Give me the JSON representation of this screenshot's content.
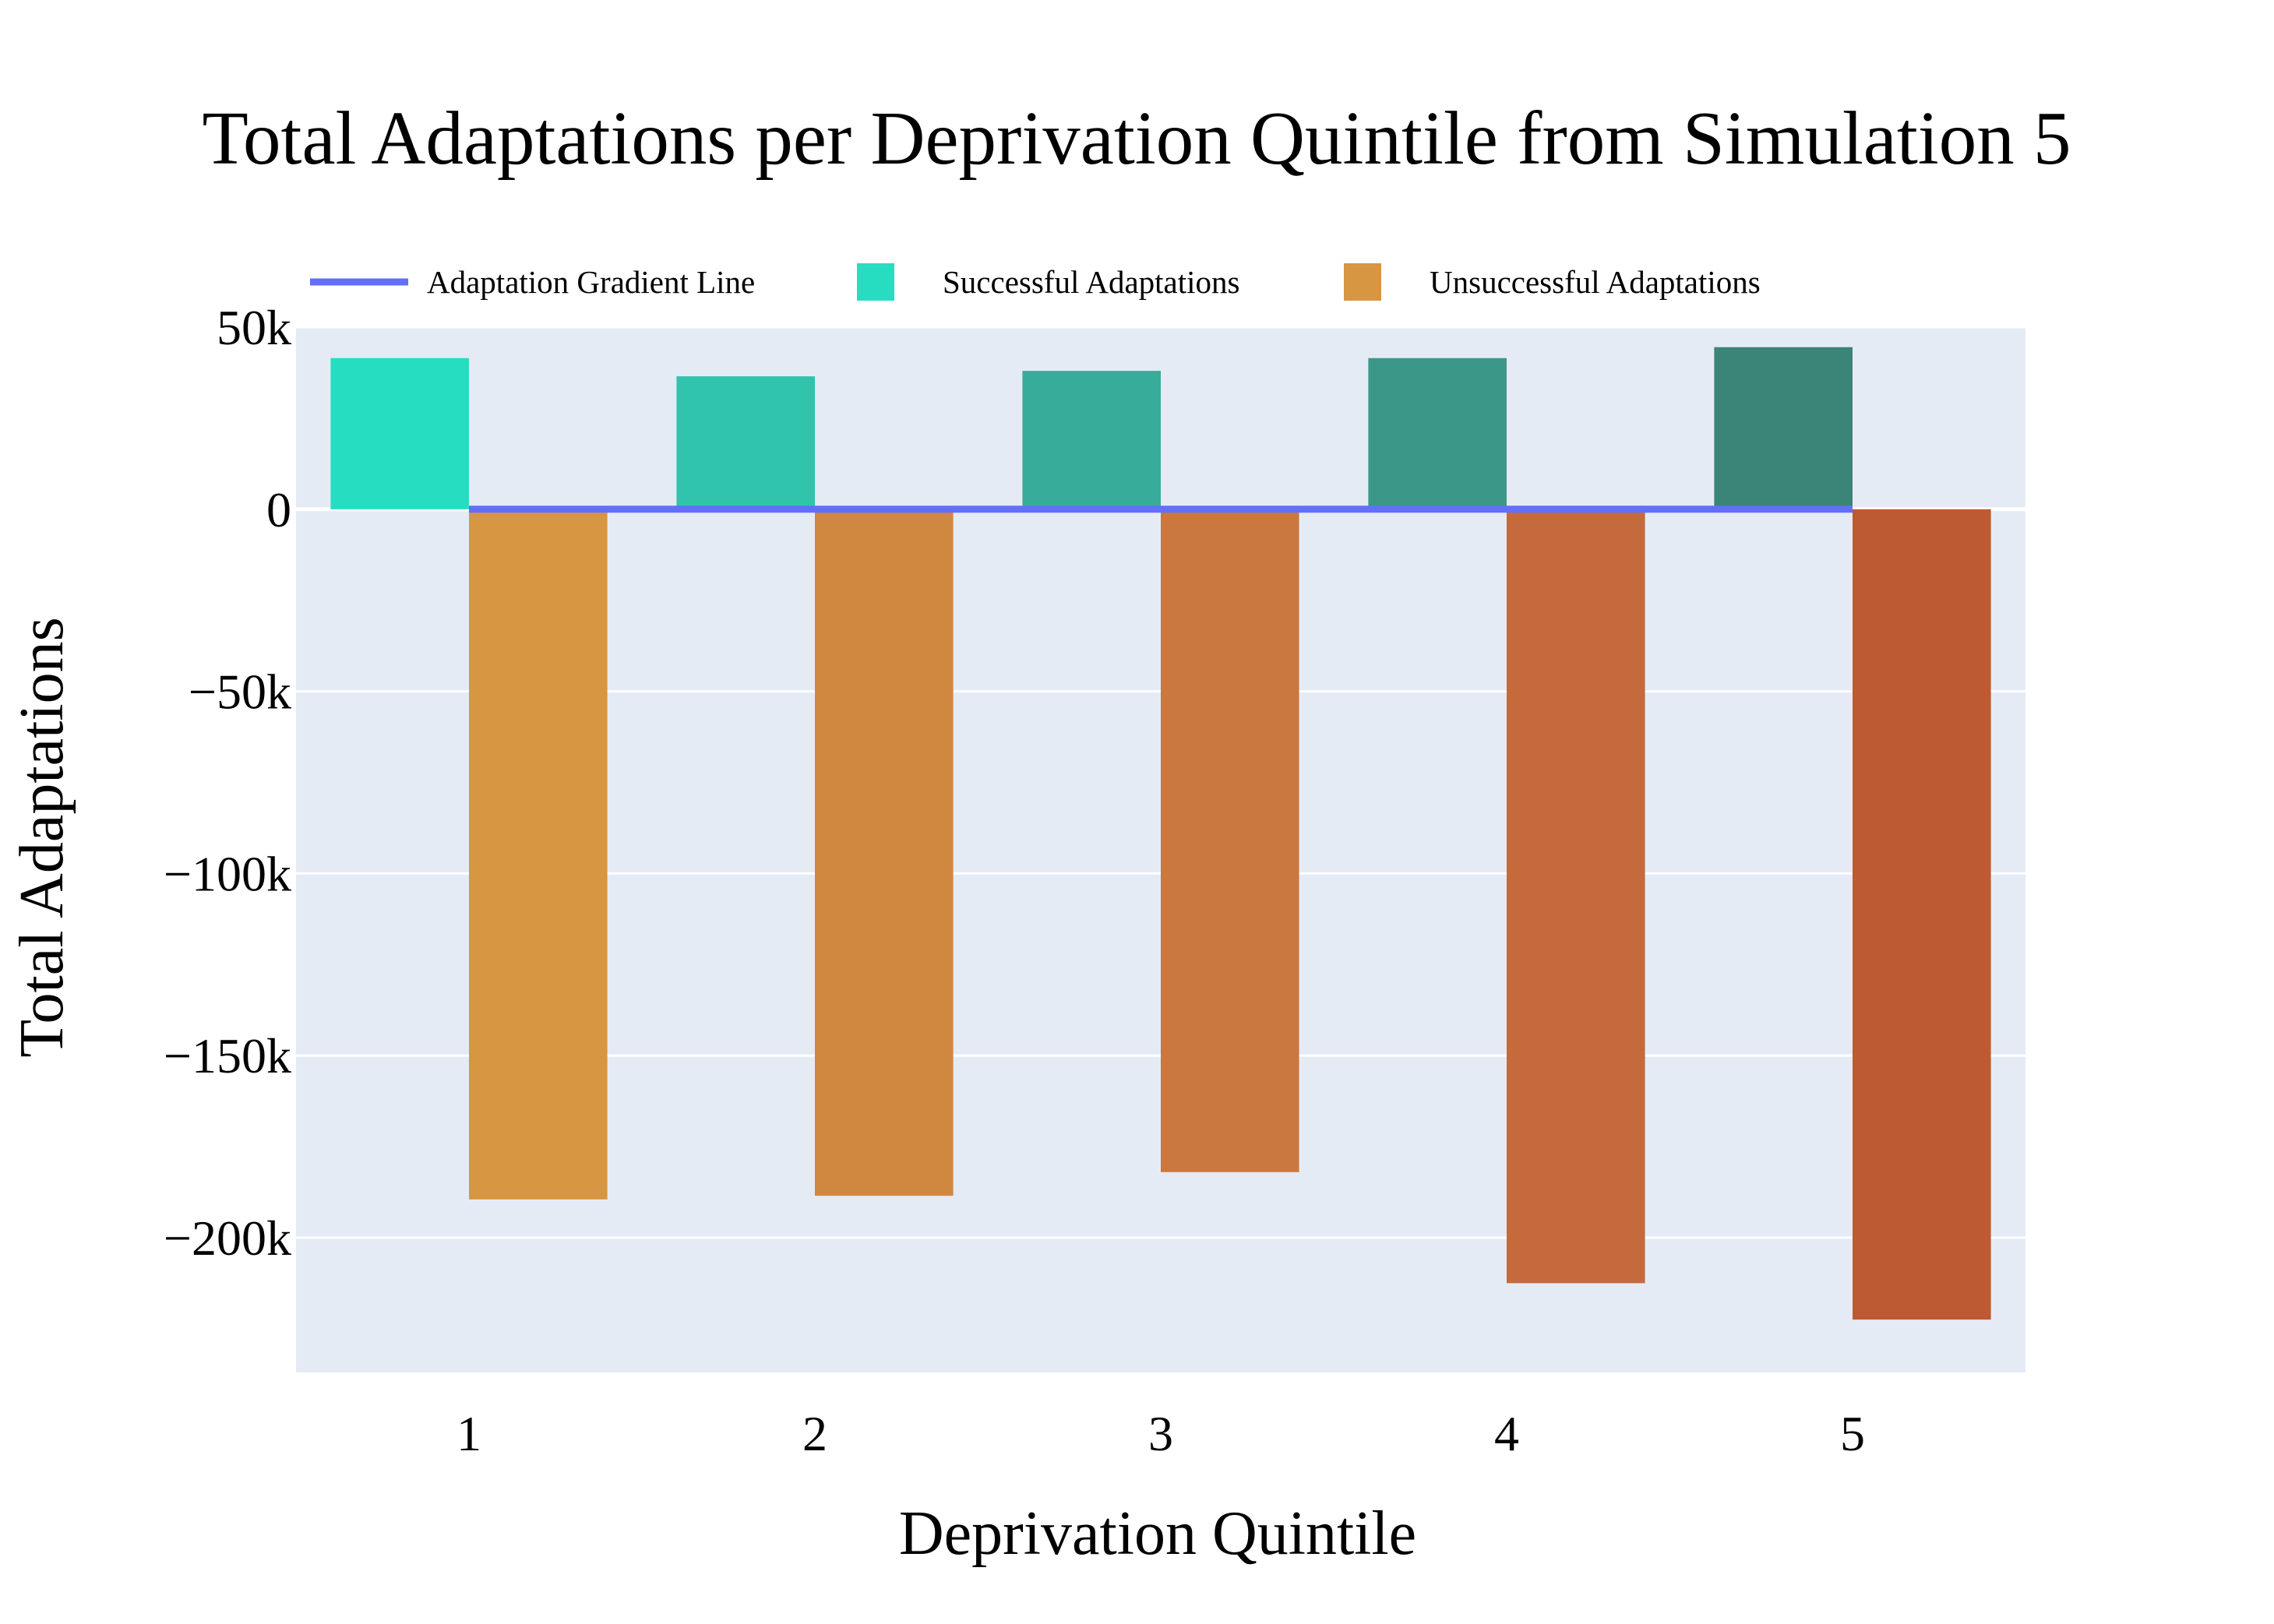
{
  "chart_data": {
    "type": "bar",
    "title": "Total Adaptations per Deprivation Quintile from Simulation 5",
    "xlabel": "Deprivation Quintile",
    "ylabel": "Total Adaptations",
    "categories": [
      "1",
      "2",
      "3",
      "4",
      "5"
    ],
    "ylim": [
      -237000,
      50000
    ],
    "yticks": [
      50000,
      0,
      -50000,
      -100000,
      -150000,
      -200000
    ],
    "ytick_labels": [
      "50k",
      "0",
      "−50k",
      "−100k",
      "−150k",
      "−200k"
    ],
    "grid": true,
    "legend_position": "top",
    "series": [
      {
        "name": "Adaptation Gradient Line",
        "kind": "line",
        "color": "#636EFA",
        "values": [
          0,
          0,
          0,
          0,
          0
        ]
      },
      {
        "name": "Successful Adaptations",
        "kind": "bar",
        "color": "#26DDC2",
        "bar_colors": [
          "#26DDC2",
          "#30C4AD",
          "#38AC9A",
          "#3B9888",
          "#3A8478"
        ],
        "values": [
          41500,
          36500,
          38000,
          41500,
          44500
        ]
      },
      {
        "name": "Unsuccessful Adaptations",
        "kind": "bar",
        "color": "#D79642",
        "bar_colors": [
          "#D79642",
          "#D0873F",
          "#CA783F",
          "#C46A3D",
          "#BE5A33"
        ],
        "values": [
          -189500,
          -188500,
          -182000,
          -212500,
          -222500
        ]
      }
    ]
  },
  "colors": {
    "plot_background": "#E5EBF5",
    "gridline": "#FFFFFF"
  }
}
